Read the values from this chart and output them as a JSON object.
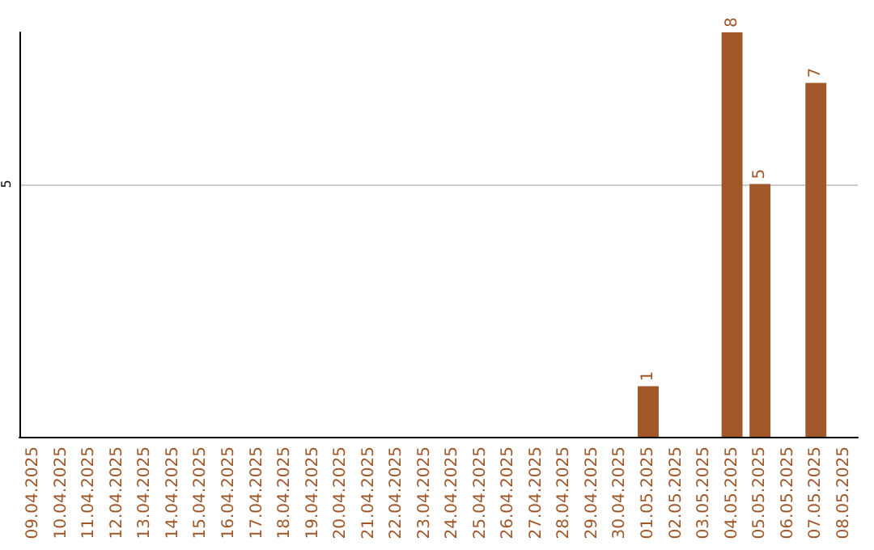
{
  "chart_data": {
    "type": "bar",
    "categories": [
      "09.04.2025",
      "10.04.2025",
      "11.04.2025",
      "12.04.2025",
      "13.04.2025",
      "14.04.2025",
      "15.04.2025",
      "16.04.2025",
      "17.04.2025",
      "18.04.2025",
      "19.04.2025",
      "20.04.2025",
      "21.04.2025",
      "22.04.2025",
      "23.04.2025",
      "24.04.2025",
      "25.04.2025",
      "26.04.2025",
      "27.04.2025",
      "28.04.2025",
      "29.04.2025",
      "30.04.2025",
      "01.05.2025",
      "02.05.2025",
      "03.05.2025",
      "04.05.2025",
      "05.05.2025",
      "06.05.2025",
      "07.05.2025",
      "08.05.2025"
    ],
    "values": [
      null,
      null,
      null,
      null,
      null,
      null,
      null,
      null,
      null,
      null,
      null,
      null,
      null,
      null,
      null,
      null,
      null,
      null,
      null,
      null,
      null,
      null,
      1,
      null,
      null,
      8,
      5,
      null,
      7,
      null
    ],
    "color": "#a0582b",
    "ylim": [
      0,
      8
    ],
    "yticks": [
      5
    ],
    "grid": "y",
    "data_labels": true
  }
}
